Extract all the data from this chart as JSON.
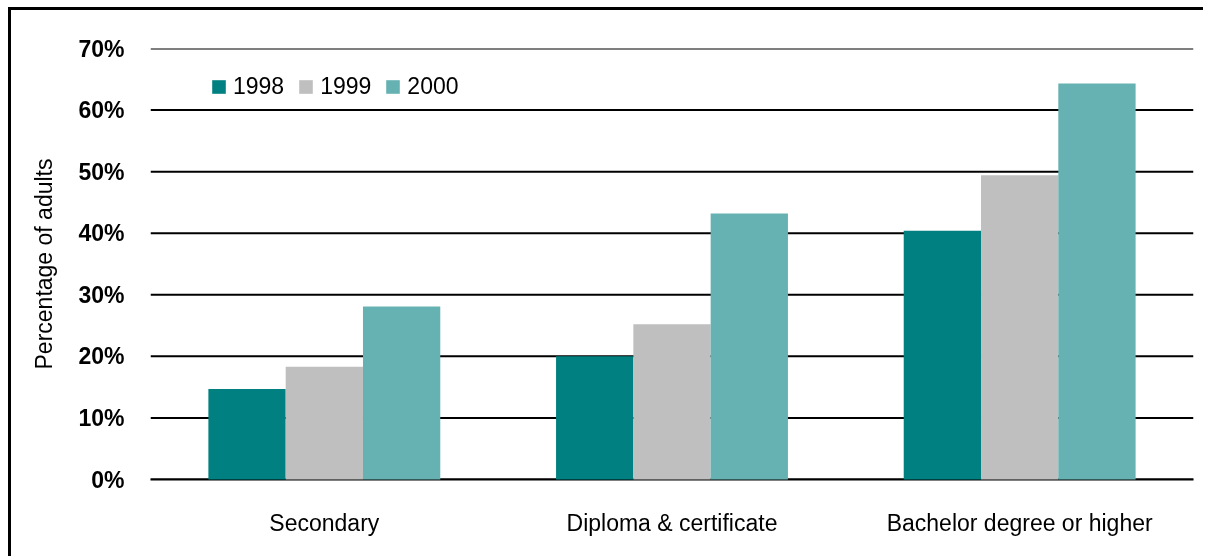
{
  "chart_data": {
    "type": "bar",
    "ylabel": "Percentage of adults",
    "categories": [
      "Secondary",
      "Diploma & certificate",
      "Bachelor degree or higher"
    ],
    "series": [
      {
        "name": "1998",
        "color": "#008080",
        "values": [
          14.7,
          20.0,
          40.4
        ]
      },
      {
        "name": "1999",
        "color": "#bfbfbf",
        "values": [
          18.3,
          25.2,
          49.4
        ]
      },
      {
        "name": "2000",
        "color": "#66b2b2",
        "values": [
          28.1,
          43.2,
          64.3
        ]
      }
    ],
    "ylim": [
      0,
      70
    ],
    "yticks": [
      {
        "value": 0,
        "label": "0%"
      },
      {
        "value": 10,
        "label": "10%"
      },
      {
        "value": 20,
        "label": "20%"
      },
      {
        "value": 30,
        "label": "30%"
      },
      {
        "value": 40,
        "label": "40%"
      },
      {
        "value": 50,
        "label": "50%"
      },
      {
        "value": 60,
        "label": "60%"
      },
      {
        "value": 70,
        "label": "70%"
      }
    ],
    "grid": "y",
    "legend": "top left"
  }
}
